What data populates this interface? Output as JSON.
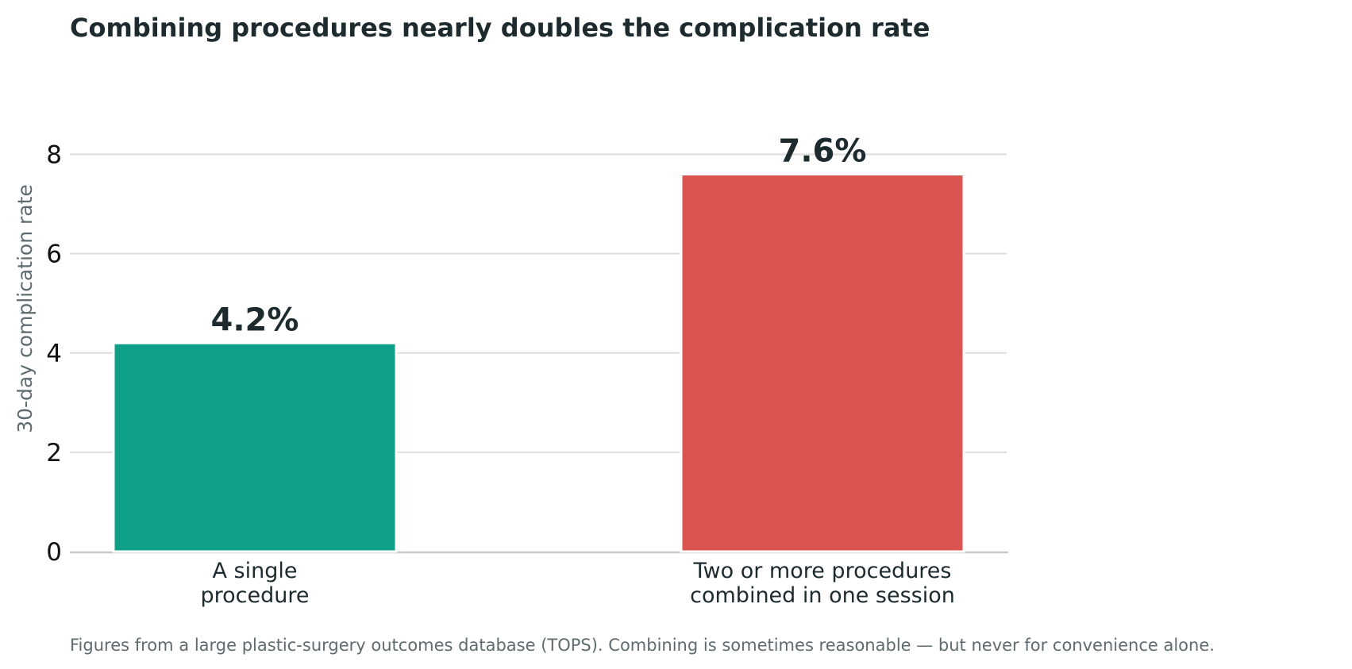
{
  "chart_data": {
    "type": "bar",
    "title": "Combining procedures nearly doubles the complication rate",
    "ylabel": "30-day complication rate",
    "xlabel": "",
    "categories": [
      [
        "A single",
        "procedure"
      ],
      [
        "Two or more procedures",
        "combined in one session"
      ]
    ],
    "values": [
      4.2,
      7.6
    ],
    "value_labels": [
      "4.2%",
      "7.6%"
    ],
    "colors": [
      "#0ea187",
      "#da5550"
    ],
    "ylim": [
      0,
      9
    ],
    "yticks": [
      0,
      2,
      4,
      6,
      8
    ],
    "grid": "horizontal",
    "footnote": "Figures from a large plastic-surgery outcomes database (TOPS). Combining is sometimes reasonable — but never for convenience alone."
  }
}
